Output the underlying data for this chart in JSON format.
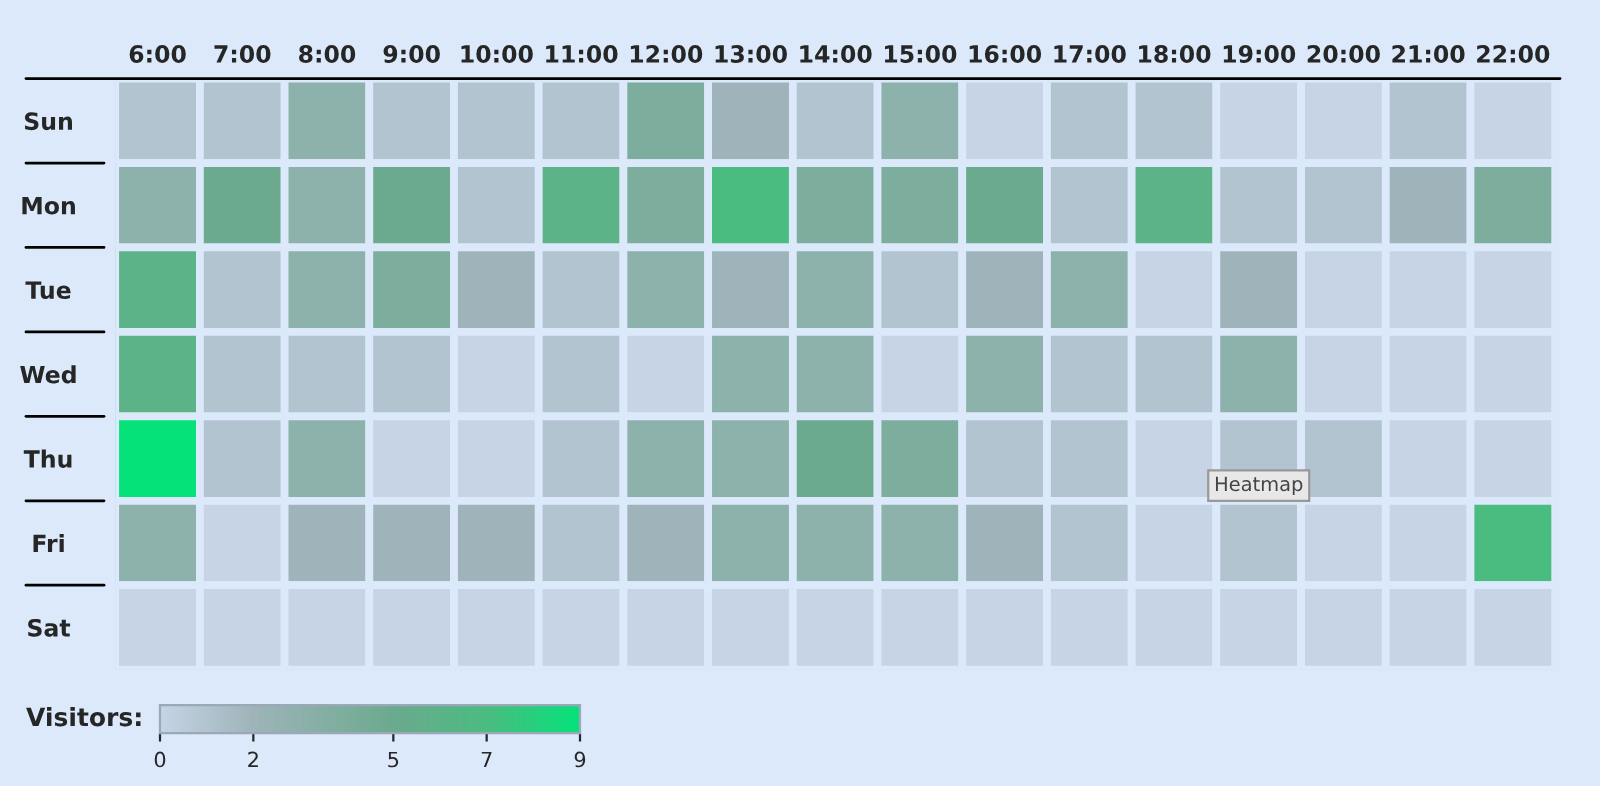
{
  "chart_data": {
    "type": "heatmap",
    "categories": [
      "6:00",
      "7:00",
      "8:00",
      "9:00",
      "10:00",
      "11:00",
      "12:00",
      "13:00",
      "14:00",
      "15:00",
      "16:00",
      "17:00",
      "18:00",
      "19:00",
      "20:00",
      "21:00",
      "22:00"
    ],
    "y_categories": [
      "Sun",
      "Mon",
      "Tue",
      "Wed",
      "Thu",
      "Fri",
      "Sat"
    ],
    "cells": [
      [
        1,
        1,
        3,
        1,
        1,
        1,
        4,
        2,
        1,
        3,
        0,
        1,
        1,
        0,
        0,
        1,
        0
      ],
      [
        3,
        5,
        3,
        5,
        1,
        6,
        4,
        7,
        4,
        4,
        5,
        1,
        6,
        1,
        1,
        2,
        4
      ],
      [
        6,
        1,
        3,
        4,
        2,
        1,
        3,
        2,
        3,
        1,
        2,
        3,
        0,
        2,
        0,
        0,
        0
      ],
      [
        6,
        1,
        1,
        1,
        0,
        1,
        0,
        3,
        3,
        0,
        3,
        1,
        1,
        3,
        0,
        0,
        0
      ],
      [
        9,
        1,
        3,
        0,
        0,
        1,
        3,
        3,
        5,
        4,
        1,
        1,
        0,
        1,
        1,
        0,
        0
      ],
      [
        3,
        0,
        2,
        2,
        2,
        1,
        2,
        3,
        3,
        3,
        2,
        1,
        0,
        1,
        0,
        0,
        7
      ],
      [
        0,
        0,
        0,
        0,
        0,
        0,
        0,
        0,
        0,
        0,
        0,
        0,
        0,
        0,
        0,
        0,
        0
      ]
    ],
    "clabel": "Visitors:",
    "clim": [
      0,
      9
    ],
    "cticks": [
      0,
      2,
      5,
      7,
      9
    ],
    "annotations": [
      "Heatmap"
    ]
  }
}
